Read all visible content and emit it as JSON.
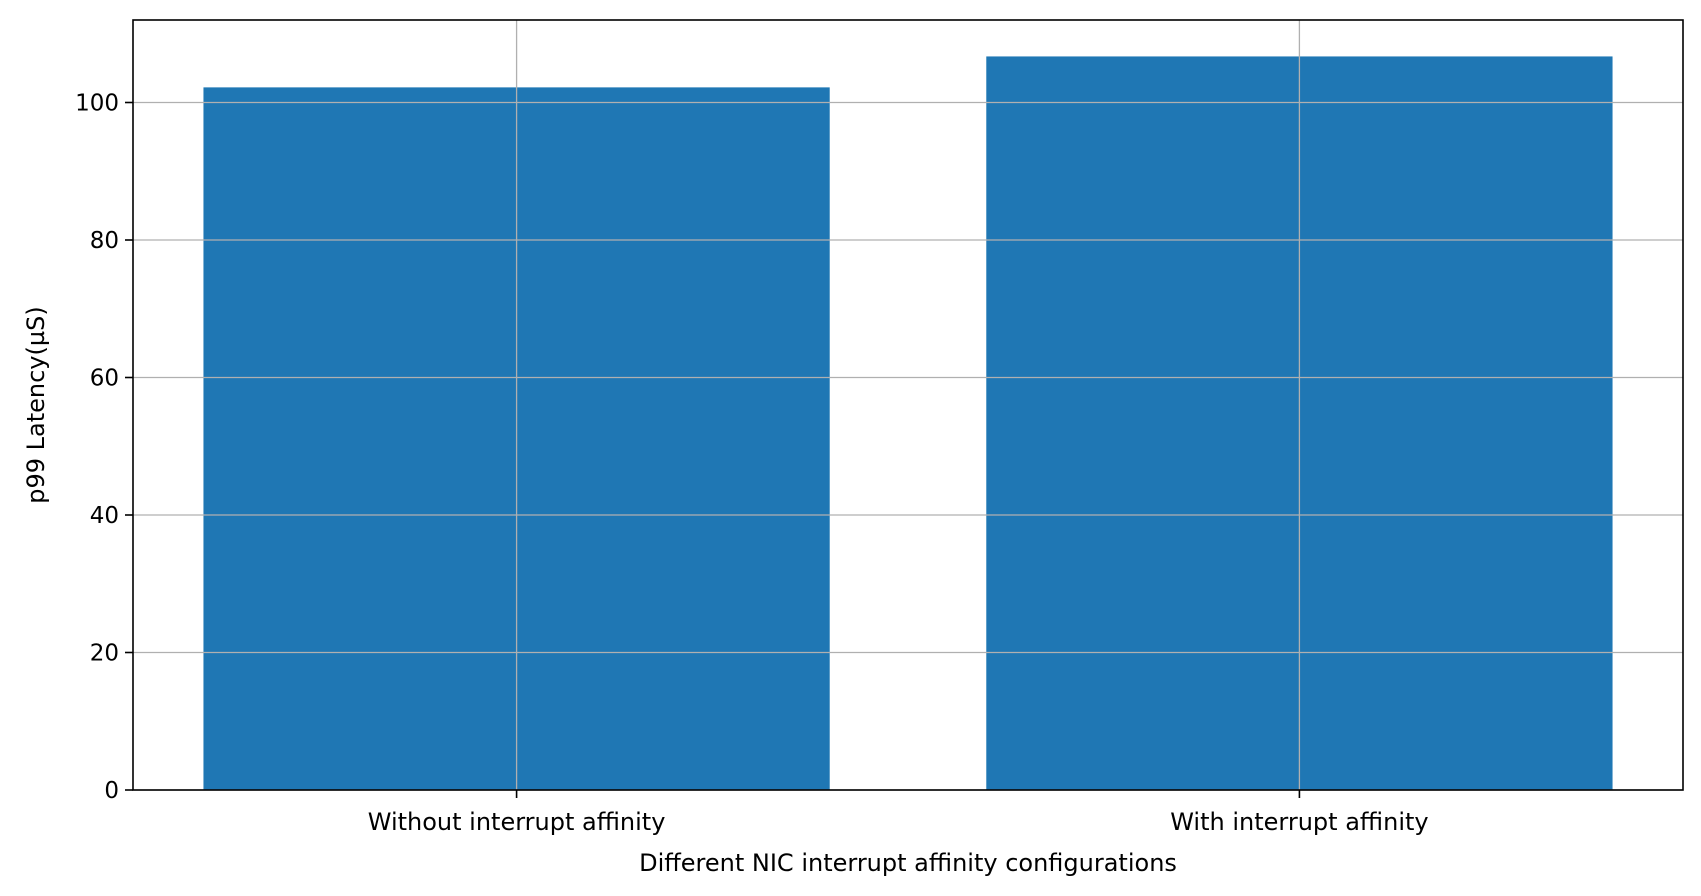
{
  "chart_data": {
    "type": "bar",
    "title": "",
    "xlabel": "Different NIC interrupt affinity configurations",
    "ylabel": "p99 Latency(µS)",
    "categories": [
      "Without interrupt affinity",
      "With interrupt affinity"
    ],
    "values": [
      102.2,
      106.7
    ],
    "ylim": [
      0,
      112
    ],
    "yticks": [
      0,
      20,
      40,
      60,
      80,
      100
    ],
    "grid": true,
    "bar_color": "#1f77b4",
    "grid_color": "#b0b0b0"
  }
}
